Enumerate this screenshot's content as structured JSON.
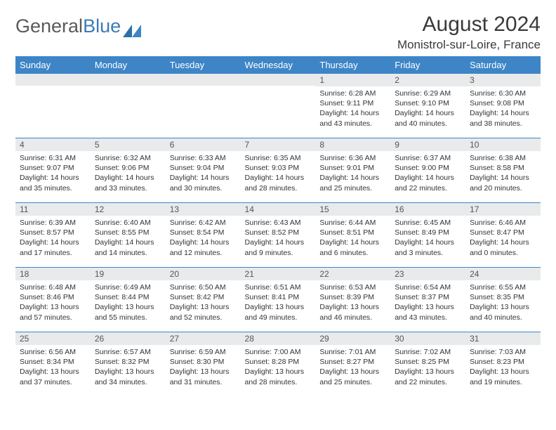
{
  "brand": {
    "part1": "General",
    "part2": "Blue"
  },
  "title": {
    "month": "August 2024",
    "location": "Monistrol-sur-Loire, France"
  },
  "colors": {
    "header_bg": "#3d85c6",
    "header_fg": "#ffffff",
    "daynum_bg": "#e8eaec",
    "border": "#3d85c6",
    "logo_gray": "#5a5a5a",
    "logo_blue": "#3d7ab8"
  },
  "weekdays": [
    "Sunday",
    "Monday",
    "Tuesday",
    "Wednesday",
    "Thursday",
    "Friday",
    "Saturday"
  ],
  "weeks": [
    [
      null,
      null,
      null,
      null,
      {
        "n": "1",
        "sunrise": "6:28 AM",
        "sunset": "9:11 PM",
        "daylight": "14 hours and 43 minutes."
      },
      {
        "n": "2",
        "sunrise": "6:29 AM",
        "sunset": "9:10 PM",
        "daylight": "14 hours and 40 minutes."
      },
      {
        "n": "3",
        "sunrise": "6:30 AM",
        "sunset": "9:08 PM",
        "daylight": "14 hours and 38 minutes."
      }
    ],
    [
      {
        "n": "4",
        "sunrise": "6:31 AM",
        "sunset": "9:07 PM",
        "daylight": "14 hours and 35 minutes."
      },
      {
        "n": "5",
        "sunrise": "6:32 AM",
        "sunset": "9:06 PM",
        "daylight": "14 hours and 33 minutes."
      },
      {
        "n": "6",
        "sunrise": "6:33 AM",
        "sunset": "9:04 PM",
        "daylight": "14 hours and 30 minutes."
      },
      {
        "n": "7",
        "sunrise": "6:35 AM",
        "sunset": "9:03 PM",
        "daylight": "14 hours and 28 minutes."
      },
      {
        "n": "8",
        "sunrise": "6:36 AM",
        "sunset": "9:01 PM",
        "daylight": "14 hours and 25 minutes."
      },
      {
        "n": "9",
        "sunrise": "6:37 AM",
        "sunset": "9:00 PM",
        "daylight": "14 hours and 22 minutes."
      },
      {
        "n": "10",
        "sunrise": "6:38 AM",
        "sunset": "8:58 PM",
        "daylight": "14 hours and 20 minutes."
      }
    ],
    [
      {
        "n": "11",
        "sunrise": "6:39 AM",
        "sunset": "8:57 PM",
        "daylight": "14 hours and 17 minutes."
      },
      {
        "n": "12",
        "sunrise": "6:40 AM",
        "sunset": "8:55 PM",
        "daylight": "14 hours and 14 minutes."
      },
      {
        "n": "13",
        "sunrise": "6:42 AM",
        "sunset": "8:54 PM",
        "daylight": "14 hours and 12 minutes."
      },
      {
        "n": "14",
        "sunrise": "6:43 AM",
        "sunset": "8:52 PM",
        "daylight": "14 hours and 9 minutes."
      },
      {
        "n": "15",
        "sunrise": "6:44 AM",
        "sunset": "8:51 PM",
        "daylight": "14 hours and 6 minutes."
      },
      {
        "n": "16",
        "sunrise": "6:45 AM",
        "sunset": "8:49 PM",
        "daylight": "14 hours and 3 minutes."
      },
      {
        "n": "17",
        "sunrise": "6:46 AM",
        "sunset": "8:47 PM",
        "daylight": "14 hours and 0 minutes."
      }
    ],
    [
      {
        "n": "18",
        "sunrise": "6:48 AM",
        "sunset": "8:46 PM",
        "daylight": "13 hours and 57 minutes."
      },
      {
        "n": "19",
        "sunrise": "6:49 AM",
        "sunset": "8:44 PM",
        "daylight": "13 hours and 55 minutes."
      },
      {
        "n": "20",
        "sunrise": "6:50 AM",
        "sunset": "8:42 PM",
        "daylight": "13 hours and 52 minutes."
      },
      {
        "n": "21",
        "sunrise": "6:51 AM",
        "sunset": "8:41 PM",
        "daylight": "13 hours and 49 minutes."
      },
      {
        "n": "22",
        "sunrise": "6:53 AM",
        "sunset": "8:39 PM",
        "daylight": "13 hours and 46 minutes."
      },
      {
        "n": "23",
        "sunrise": "6:54 AM",
        "sunset": "8:37 PM",
        "daylight": "13 hours and 43 minutes."
      },
      {
        "n": "24",
        "sunrise": "6:55 AM",
        "sunset": "8:35 PM",
        "daylight": "13 hours and 40 minutes."
      }
    ],
    [
      {
        "n": "25",
        "sunrise": "6:56 AM",
        "sunset": "8:34 PM",
        "daylight": "13 hours and 37 minutes."
      },
      {
        "n": "26",
        "sunrise": "6:57 AM",
        "sunset": "8:32 PM",
        "daylight": "13 hours and 34 minutes."
      },
      {
        "n": "27",
        "sunrise": "6:59 AM",
        "sunset": "8:30 PM",
        "daylight": "13 hours and 31 minutes."
      },
      {
        "n": "28",
        "sunrise": "7:00 AM",
        "sunset": "8:28 PM",
        "daylight": "13 hours and 28 minutes."
      },
      {
        "n": "29",
        "sunrise": "7:01 AM",
        "sunset": "8:27 PM",
        "daylight": "13 hours and 25 minutes."
      },
      {
        "n": "30",
        "sunrise": "7:02 AM",
        "sunset": "8:25 PM",
        "daylight": "13 hours and 22 minutes."
      },
      {
        "n": "31",
        "sunrise": "7:03 AM",
        "sunset": "8:23 PM",
        "daylight": "13 hours and 19 minutes."
      }
    ]
  ],
  "labels": {
    "sunrise": "Sunrise:",
    "sunset": "Sunset:",
    "daylight": "Daylight:"
  }
}
